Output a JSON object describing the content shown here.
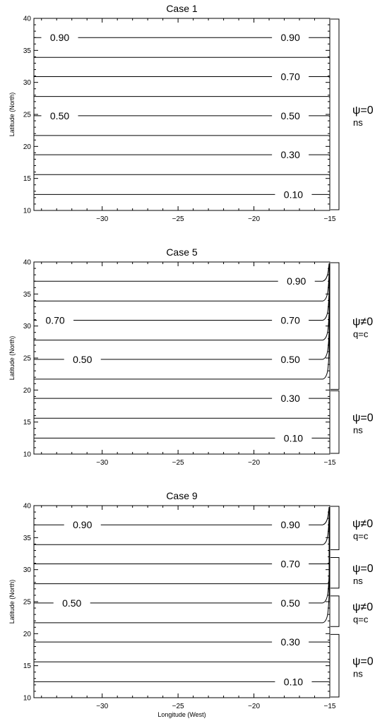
{
  "chart_data": [
    {
      "type": "line",
      "title": "Case 1",
      "xlabel": "",
      "ylabel": "Latitude (North)",
      "xlim": [
        -34.5,
        -15
      ],
      "ylim": [
        10,
        40
      ],
      "x_ticks": [
        -30,
        -25,
        -20,
        -15
      ],
      "y_ticks": [
        10,
        15,
        20,
        25,
        30,
        35,
        40
      ],
      "contours": [
        {
          "lat": 12.5,
          "label": "0.10",
          "label_x": [
            -17.4
          ]
        },
        {
          "lat": 15.6,
          "label": ""
        },
        {
          "lat": 18.7,
          "label": "0.30",
          "label_x": [
            -17.6
          ]
        },
        {
          "lat": 21.7,
          "label": ""
        },
        {
          "lat": 24.8,
          "label": "0.50",
          "label_x": [
            -32.8,
            -17.6
          ]
        },
        {
          "lat": 27.8,
          "label": ""
        },
        {
          "lat": 30.9,
          "label": "0.70",
          "label_x": [
            -17.6
          ]
        },
        {
          "lat": 33.9,
          "label": ""
        },
        {
          "lat": 37.0,
          "label": "0.90",
          "label_x": [
            -32.8,
            -17.6
          ]
        }
      ],
      "brackets": [
        {
          "from": 10,
          "to": 40,
          "label": "ψ=0",
          "sub": "ns"
        }
      ]
    },
    {
      "type": "line",
      "title": "Case 5",
      "xlabel": "",
      "ylabel": "Latitude (North)",
      "xlim": [
        -34.5,
        -15
      ],
      "ylim": [
        10,
        40
      ],
      "x_ticks": [
        -30,
        -25,
        -20,
        -15
      ],
      "y_ticks": [
        10,
        15,
        20,
        25,
        30,
        35,
        40
      ],
      "contours": [
        {
          "lat": 12.5,
          "label": "0.10",
          "label_x": [
            -17.4
          ]
        },
        {
          "lat": 15.6,
          "label": ""
        },
        {
          "lat": 18.7,
          "label": "0.30",
          "label_x": [
            -17.6
          ]
        },
        {
          "lat": 21.7,
          "label": "",
          "bend": true
        },
        {
          "lat": 24.8,
          "label": "0.50",
          "label_x": [
            -31.3,
            -17.6
          ],
          "bend": true
        },
        {
          "lat": 27.8,
          "label": "",
          "bend": true
        },
        {
          "lat": 30.9,
          "label": "0.70",
          "label_x": [
            -33.1,
            -17.6
          ],
          "bend": true
        },
        {
          "lat": 33.9,
          "label": "",
          "bend": true
        },
        {
          "lat": 37.0,
          "label": "0.90",
          "label_x": [
            -17.2
          ],
          "bend": true
        }
      ],
      "brackets": [
        {
          "from": 20,
          "to": 40,
          "label": "ψ≠0",
          "sub": "q=c"
        },
        {
          "from": 10,
          "to": 20,
          "label": "ψ=0",
          "sub": "ns"
        }
      ]
    },
    {
      "type": "line",
      "title": "Case 9",
      "xlabel": "Longitude (West)",
      "ylabel": "Latitude (North)",
      "xlim": [
        -34.5,
        -15
      ],
      "ylim": [
        10,
        40
      ],
      "x_ticks": [
        -30,
        -25,
        -20,
        -15
      ],
      "y_ticks": [
        10,
        15,
        20,
        25,
        30,
        35,
        40
      ],
      "contours": [
        {
          "lat": 12.5,
          "label": "0.10",
          "label_x": [
            -17.4
          ]
        },
        {
          "lat": 15.6,
          "label": ""
        },
        {
          "lat": 18.7,
          "label": "0.30",
          "label_x": [
            -17.6
          ]
        },
        {
          "lat": 21.7,
          "label": "",
          "bend": true
        },
        {
          "lat": 24.8,
          "label": "0.50",
          "label_x": [
            -32.0,
            -17.6
          ],
          "bend": true
        },
        {
          "lat": 27.8,
          "label": ""
        },
        {
          "lat": 30.9,
          "label": "0.70",
          "label_x": [
            -17.6
          ]
        },
        {
          "lat": 33.9,
          "label": "",
          "bend": true
        },
        {
          "lat": 37.0,
          "label": "0.90",
          "label_x": [
            -31.3,
            -17.6
          ],
          "bend": true
        }
      ],
      "brackets": [
        {
          "from": 33,
          "to": 40,
          "label": "ψ≠0",
          "sub": "q=c"
        },
        {
          "from": 27,
          "to": 32,
          "label": "ψ=0",
          "sub": "ns"
        },
        {
          "from": 21,
          "to": 26,
          "label": "ψ≠0",
          "sub": "q=c"
        },
        {
          "from": 10,
          "to": 20,
          "label": "ψ=0",
          "sub": "ns"
        }
      ]
    }
  ]
}
